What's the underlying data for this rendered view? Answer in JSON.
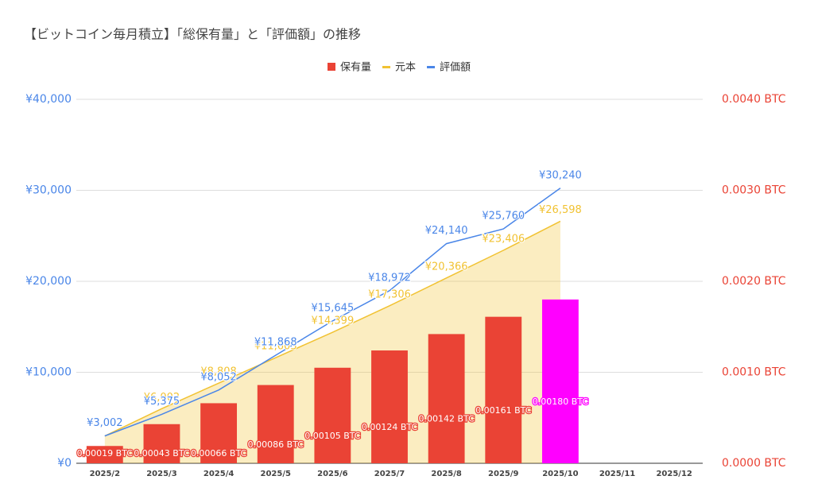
{
  "chart_data": {
    "type": "combo",
    "title": "【ビットコイン毎月積立】「総保有量」と「評価額」の推移",
    "categories": [
      "2025/2",
      "2025/3",
      "2025/4",
      "2025/5",
      "2025/6",
      "2025/7",
      "2025/8",
      "2025/9",
      "2025/10",
      "2025/11",
      "2025/12"
    ],
    "ylim": [
      0,
      40000
    ],
    "yticks": [
      {
        "value": 0,
        "label": "¥0"
      },
      {
        "value": 10000,
        "label": "¥10,000"
      },
      {
        "value": 20000,
        "label": "¥20,000"
      },
      {
        "value": 30000,
        "label": "¥30,000"
      },
      {
        "value": 40000,
        "label": "¥40,000"
      }
    ],
    "y2lim": [
      0,
      0.004
    ],
    "y2ticks": [
      {
        "value": 0,
        "label": "0.0000 BTC"
      },
      {
        "value": 0.001,
        "label": "0.0010 BTC"
      },
      {
        "value": 0.002,
        "label": "0.0020 BTC"
      },
      {
        "value": 0.003,
        "label": "0.0030 BTC"
      },
      {
        "value": 0.004,
        "label": "0.0040 BTC"
      }
    ],
    "grid": true,
    "legend": "top",
    "series": [
      {
        "name": "保有量",
        "type": "bar",
        "axis": "y2",
        "color": "#ea4335",
        "colors": [
          "#ea4335",
          "#ea4335",
          "#ea4335",
          "#ea4335",
          "#ea4335",
          "#ea4335",
          "#ea4335",
          "#ea4335",
          "#ff00ff",
          "#ea4335",
          "#ea4335"
        ],
        "values": [
          0.00019,
          0.00043,
          0.00066,
          0.00086,
          0.00105,
          0.00124,
          0.00142,
          0.00161,
          0.0018,
          null,
          null
        ],
        "value_labels": [
          "0.00019 BTC",
          "0.00043 BTC",
          "0.00066 BTC",
          "0.00086 BTC",
          "0.00105 BTC",
          "0.00124 BTC",
          "0.00142 BTC",
          "0.00161 BTC",
          "0.00180 BTC",
          null,
          null
        ]
      },
      {
        "name": "元本",
        "type": "area",
        "color": "#f1c232",
        "values": [
          3000,
          6002,
          8808,
          11603,
          14399,
          17306,
          20366,
          23406,
          26598,
          null,
          null
        ],
        "value_labels": [
          null,
          "¥6,002",
          "¥8,808",
          "¥11,603",
          "¥14,399",
          "¥17,306",
          "¥20,366",
          "¥23,406",
          "¥26,598",
          null,
          null
        ]
      },
      {
        "name": "評価額",
        "type": "line",
        "color": "#4a86e8",
        "values": [
          3002,
          5375,
          8052,
          11868,
          15645,
          18972,
          24140,
          25760,
          30240,
          null,
          null
        ],
        "value_labels": [
          "¥3,002",
          "¥5,375",
          "¥8,052",
          "¥11,868",
          "¥15,645",
          "¥18,972",
          "¥24,140",
          "¥25,760",
          "¥30,240",
          null,
          null
        ]
      }
    ]
  }
}
